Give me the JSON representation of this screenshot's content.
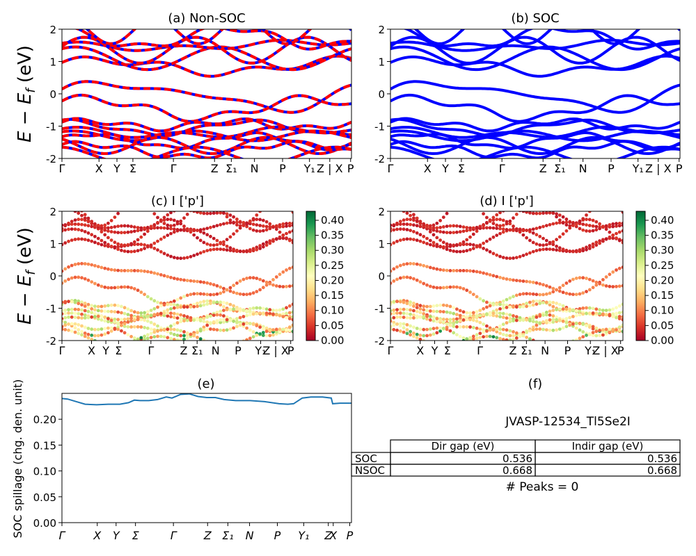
{
  "material_id": "JVASP-12534_Tl5Se2I",
  "peaks_label": "# Peaks = 0",
  "ylabel_energy": "E − E_f (eV)",
  "colors": {
    "soc_band": "#0000ff",
    "nsoc_band": "#ff0000",
    "spillage_line": "#1f77b4"
  },
  "panels": [
    {
      "id": "a",
      "title": "(a) Non-SOC"
    },
    {
      "id": "b",
      "title": "(b) SOC"
    },
    {
      "id": "c",
      "title": "(c)  I ['p']"
    },
    {
      "id": "d",
      "title": "(d) I ['p']"
    },
    {
      "id": "e",
      "title": "(e)",
      "ylabel": "SOC spillage (chg. den. unit)"
    },
    {
      "id": "f",
      "title": "(f)"
    }
  ],
  "kpath": {
    "ticks_ab": [
      {
        "label": "Γ",
        "pos": 0.0
      },
      {
        "label": "X",
        "pos": 0.128
      },
      {
        "label": "Y",
        "pos": 0.19
      },
      {
        "label": "Σ",
        "pos": 0.245
      },
      {
        "label": "Γ",
        "pos": 0.385
      },
      {
        "label": "Z",
        "pos": 0.527
      },
      {
        "label": "Σ₁",
        "pos": 0.585
      },
      {
        "label": "N",
        "pos": 0.665
      },
      {
        "label": "P",
        "pos": 0.762
      },
      {
        "label": "Y₁",
        "pos": 0.855
      },
      {
        "label": "Z | X",
        "pos": 0.925
      },
      {
        "label": "P",
        "pos": 0.997
      }
    ],
    "ticks_cd": [
      {
        "label": "Γ",
        "pos": 0.0
      },
      {
        "label": "X",
        "pos": 0.128
      },
      {
        "label": "Y",
        "pos": 0.19
      },
      {
        "label": "Σ",
        "pos": 0.245
      },
      {
        "label": "Γ",
        "pos": 0.385
      },
      {
        "label": "Z",
        "pos": 0.527
      },
      {
        "label": "Σ₁",
        "pos": 0.585
      },
      {
        "label": "N",
        "pos": 0.665
      },
      {
        "label": "P",
        "pos": 0.762
      },
      {
        "label": "Y₁",
        "pos": 0.86
      },
      {
        "label": "Z | X",
        "pos": 0.925
      },
      {
        "label": "P",
        "pos": 0.99
      }
    ],
    "ticks_e": [
      {
        "label": "Γ",
        "pos": 0.0
      },
      {
        "label": "X",
        "pos": 0.122
      },
      {
        "label": "Y",
        "pos": 0.187
      },
      {
        "label": "Σ",
        "pos": 0.254
      },
      {
        "label": "Γ",
        "pos": 0.385
      },
      {
        "label": "Z",
        "pos": 0.503
      },
      {
        "label": "Σ₁",
        "pos": 0.573
      },
      {
        "label": "N",
        "pos": 0.648
      },
      {
        "label": "P",
        "pos": 0.744
      },
      {
        "label": "Y₁",
        "pos": 0.835
      },
      {
        "label": "Z",
        "pos": 0.92
      },
      {
        "label": "X",
        "pos": 0.937
      },
      {
        "label": "P",
        "pos": 0.994
      }
    ]
  },
  "chart_data": [
    {
      "type": "line",
      "panel": "a",
      "title": "(a) Non-SOC",
      "ylabel": "E − E_f (eV)",
      "ylim": [
        -2,
        2
      ],
      "yticks": [
        -2,
        -1,
        0,
        1,
        2
      ],
      "series": [
        {
          "name": "SOC",
          "color": "#0000ff",
          "style": "solid"
        },
        {
          "name": "Non-SOC",
          "color": "#ff0000",
          "style": "dashed"
        }
      ]
    },
    {
      "type": "line",
      "panel": "b",
      "title": "(b) SOC",
      "ylim": [
        -2,
        2
      ],
      "yticks": [
        -2,
        -1,
        0,
        1,
        2
      ],
      "series": [
        {
          "name": "SOC",
          "color": "#0000ff",
          "style": "solid"
        }
      ]
    },
    {
      "type": "scatter",
      "panel": "c",
      "title": "(c)  I ['p']",
      "ylabel": "E − E_f (eV)",
      "ylim": [
        -2,
        2
      ],
      "yticks": [
        -2,
        -1,
        0,
        1,
        2
      ],
      "colorbar": {
        "min": 0.0,
        "max": 0.43,
        "ticks": [
          "0.00",
          "0.05",
          "0.10",
          "0.15",
          "0.20",
          "0.25",
          "0.30",
          "0.35",
          "0.40"
        ],
        "colormap": "RdYlGn"
      }
    },
    {
      "type": "scatter",
      "panel": "d",
      "title": "(d) I ['p']",
      "ylim": [
        -2,
        2
      ],
      "yticks": [
        -2,
        -1,
        0,
        1,
        2
      ],
      "colorbar": {
        "min": 0.0,
        "max": 0.43,
        "ticks": [
          "0.00",
          "0.05",
          "0.10",
          "0.15",
          "0.20",
          "0.25",
          "0.30",
          "0.35",
          "0.40"
        ],
        "colormap": "RdYlGn"
      }
    },
    {
      "type": "line",
      "panel": "e",
      "title": "(e)",
      "ylabel": "SOC spillage (chg. den. unit)",
      "ylim": [
        0.0,
        0.25
      ],
      "yticks": [
        "0.00",
        "0.05",
        "0.10",
        "0.15",
        "0.20"
      ],
      "x": [
        0,
        0.02,
        0.05,
        0.08,
        0.12,
        0.16,
        0.2,
        0.23,
        0.25,
        0.27,
        0.3,
        0.33,
        0.36,
        0.38,
        0.41,
        0.44,
        0.47,
        0.5,
        0.53,
        0.56,
        0.6,
        0.65,
        0.7,
        0.75,
        0.78,
        0.8,
        0.83,
        0.86,
        0.9,
        0.93,
        0.935,
        0.96,
        1.0
      ],
      "values": [
        0.24,
        0.239,
        0.234,
        0.229,
        0.228,
        0.229,
        0.229,
        0.232,
        0.237,
        0.236,
        0.236,
        0.238,
        0.243,
        0.241,
        0.248,
        0.249,
        0.244,
        0.242,
        0.242,
        0.238,
        0.236,
        0.236,
        0.234,
        0.23,
        0.229,
        0.23,
        0.241,
        0.243,
        0.243,
        0.241,
        0.23,
        0.231,
        0.231
      ],
      "series": [
        {
          "name": "SOC spillage",
          "color": "#1f77b4"
        }
      ]
    },
    {
      "type": "table",
      "panel": "f",
      "title": "(f)",
      "caption": "JVASP-12534_Tl5Se2I",
      "columns": [
        "Dir gap (eV)",
        "Indir gap (eV)"
      ],
      "rows": [
        {
          "label": "SOC",
          "values": [
            "0.536",
            "0.536"
          ]
        },
        {
          "label": "NSOC",
          "values": [
            "0.668",
            "0.668"
          ]
        }
      ],
      "footer": "# Peaks = 0"
    }
  ]
}
